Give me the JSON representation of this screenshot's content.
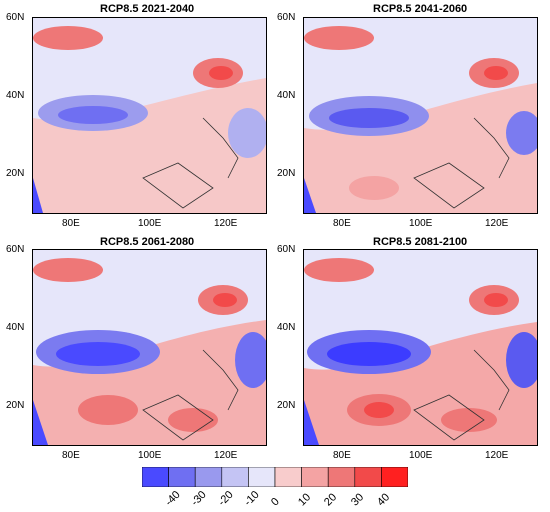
{
  "panels": [
    {
      "title": "RCP8.5 2021-2040"
    },
    {
      "title": "RCP8.5 2041-2060"
    },
    {
      "title": "RCP8.5 2061-2080"
    },
    {
      "title": "RCP8.5 2081-2100"
    }
  ],
  "axes": {
    "lat_ticks": [
      "60N",
      "40N",
      "20N"
    ],
    "lon_ticks": [
      "80E",
      "100E",
      "120E"
    ]
  },
  "colorbar": {
    "labels": [
      "-40",
      "-30",
      "-20",
      "-10",
      "0",
      "10",
      "20",
      "30",
      "40"
    ],
    "colors": [
      "#4a4aff",
      "#6f6ff2",
      "#9999ee",
      "#c4c4f4",
      "#e6e6fa",
      "#f8cccc",
      "#f4a3a3",
      "#ee7777",
      "#f24a4a",
      "#ff2020"
    ]
  },
  "palette": {
    "ocean_blue": "#c9cdf5",
    "land_pink": "#f6c3c3",
    "strong_blue": "#5a5af0",
    "strong_red": "#f04545",
    "background_neutral": "#e8e8f8"
  }
}
